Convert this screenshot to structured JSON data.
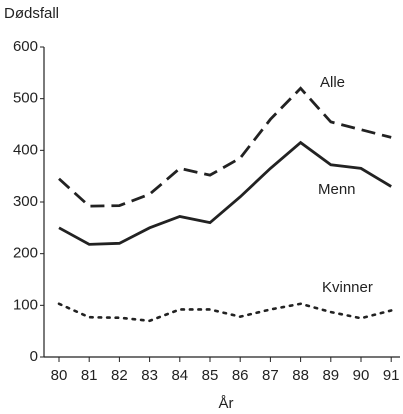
{
  "chart_data": {
    "type": "line",
    "y_label": "Dødsfall",
    "x_label": "År",
    "categories": [
      "80",
      "81",
      "82",
      "83",
      "84",
      "85",
      "86",
      "87",
      "88",
      "89",
      "90",
      "91"
    ],
    "series": [
      {
        "name": "Alle",
        "color": "#222222",
        "dash": "dashed",
        "values": [
          345,
          292,
          293,
          315,
          365,
          352,
          385,
          460,
          520,
          455,
          440,
          425
        ]
      },
      {
        "name": "Menn",
        "color": "#222222",
        "dash": "solid",
        "values": [
          250,
          218,
          220,
          250,
          272,
          260,
          310,
          365,
          415,
          372,
          365,
          330
        ]
      },
      {
        "name": "Kvinner",
        "color": "#222222",
        "dash": "dotted",
        "values": [
          103,
          77,
          76,
          70,
          92,
          92,
          78,
          92,
          103,
          87,
          75,
          90
        ]
      }
    ],
    "ylim": [
      0,
      600
    ],
    "yticks": [
      0,
      100,
      200,
      300,
      400,
      500,
      600
    ],
    "grid": false
  }
}
